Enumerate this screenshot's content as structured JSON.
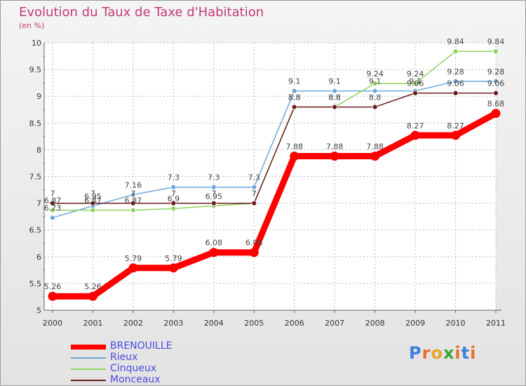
{
  "header": {
    "title": "Evolution du Taux de Taxe d'Habitation",
    "subtitle": "(en %)"
  },
  "brand": {
    "text": "Proxiti",
    "letter_colors": [
      "#3f7fdc",
      "#e8702a",
      "#e8a42a",
      "#3aa63a",
      "#e8702a",
      "#3f7fdc",
      "#e8702a"
    ]
  },
  "chart_data": {
    "type": "line",
    "title": "Evolution du Taux de Taxe d'Habitation",
    "ylabel": "(en %)",
    "xlabel": "",
    "x": [
      "2000",
      "2001",
      "2002",
      "2003",
      "2004",
      "2005",
      "2006",
      "2007",
      "2008",
      "2009",
      "2010",
      "2011"
    ],
    "ylim": [
      5,
      10
    ],
    "yticks": [
      "5",
      "5.5",
      "6",
      "6.5",
      "7",
      "7.5",
      "8",
      "8.5",
      "9",
      "9.5",
      "10"
    ],
    "grid": true,
    "legend_position": "bottom-left",
    "series": [
      {
        "name": "BRENOUILLE",
        "color": "#ff0000",
        "values": [
          5.26,
          5.26,
          5.79,
          5.79,
          6.08,
          6.08,
          7.88,
          7.88,
          7.88,
          8.27,
          8.27,
          8.68
        ],
        "labels": [
          "5.26",
          "5.26",
          "5.79",
          "5.79",
          "6.08",
          "6.08",
          "7.88",
          "7.88",
          "7.88",
          "8.27",
          "8.27",
          "8.68"
        ]
      },
      {
        "name": "Rieux",
        "color": "#6fa6d6",
        "values": [
          6.73,
          6.95,
          7.16,
          7.3,
          7.3,
          7.3,
          9.1,
          9.1,
          9.1,
          9.1,
          9.28,
          9.28
        ],
        "labels": [
          "6.73",
          "6.95",
          "7.16",
          "7.3",
          "7.3",
          "7.3",
          "9.1",
          "9.1",
          "9.1",
          "9.1",
          "9.28",
          "9.28"
        ]
      },
      {
        "name": "Cinqueux",
        "color": "#8ed460",
        "values": [
          6.87,
          6.87,
          6.87,
          6.9,
          6.95,
          7.0,
          8.8,
          8.8,
          9.24,
          9.24,
          9.84,
          9.84
        ],
        "labels": [
          "6.87",
          "6.87",
          "6.87",
          "6.9",
          "6.95",
          "7",
          "8.8",
          "8.8",
          "9.24",
          "9.24",
          "9.84",
          "9.84"
        ]
      },
      {
        "name": "Monceaux",
        "color": "#6b1c1c",
        "values": [
          7.0,
          7.0,
          7.0,
          7.0,
          7.0,
          7.0,
          8.8,
          8.8,
          8.8,
          9.06,
          9.06,
          9.06
        ],
        "labels": [
          "7",
          "7",
          "7",
          "7",
          "7",
          "7",
          "8.8",
          "8.8",
          "8.8",
          "9.06",
          "9.06",
          "9.06"
        ]
      }
    ]
  }
}
